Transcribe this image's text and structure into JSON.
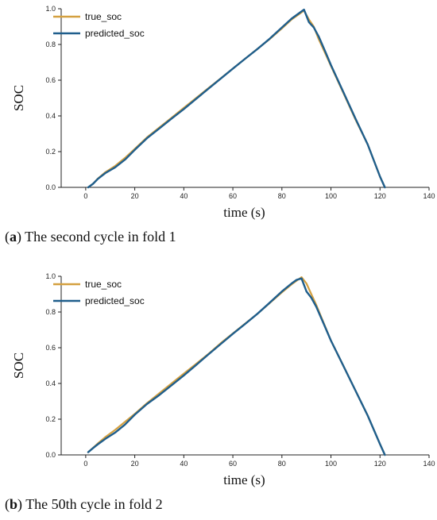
{
  "chart_data": [
    {
      "type": "line",
      "caption_tag": "a",
      "caption_text": "The second cycle in fold 1",
      "xlabel": "time (s)",
      "ylabel": "SOC",
      "xlim": [
        -10,
        140
      ],
      "ylim": [
        0,
        1
      ],
      "xticks": [
        0,
        20,
        40,
        60,
        80,
        100,
        120,
        140
      ],
      "yticks": [
        0.0,
        0.2,
        0.4,
        0.6,
        0.8,
        1.0
      ],
      "xtick_labels": [
        "0",
        "20",
        "40",
        "60",
        "80",
        "100",
        "120",
        "140"
      ],
      "ytick_labels": [
        "0.0",
        "0.2",
        "0.4",
        "0.6",
        "0.8",
        "1.0"
      ],
      "grid": false,
      "legend_position": "top-left",
      "series": [
        {
          "name": "true_soc",
          "color": "#D4A040",
          "x": [
            1,
            3,
            5,
            8,
            12,
            16,
            20,
            25,
            30,
            35,
            40,
            45,
            50,
            55,
            60,
            65,
            70,
            75,
            80,
            84,
            87,
            89,
            91,
            93,
            95,
            98,
            100,
            105,
            110,
            115,
            120,
            122
          ],
          "y": [
            0.0,
            0.02,
            0.05,
            0.085,
            0.12,
            0.165,
            0.215,
            0.28,
            0.335,
            0.39,
            0.445,
            0.5,
            0.555,
            0.61,
            0.665,
            0.72,
            0.775,
            0.83,
            0.89,
            0.94,
            0.97,
            0.99,
            0.94,
            0.9,
            0.83,
            0.74,
            0.68,
            0.53,
            0.38,
            0.24,
            0.06,
            0.0
          ]
        },
        {
          "name": "predicted_soc",
          "color": "#1F5E8C",
          "x": [
            1,
            3,
            5,
            8,
            12,
            16,
            20,
            25,
            30,
            35,
            40,
            45,
            50,
            55,
            60,
            65,
            70,
            75,
            80,
            84,
            87,
            89,
            91,
            93,
            95,
            98,
            100,
            105,
            110,
            115,
            120,
            122
          ],
          "y": [
            0.0,
            0.02,
            0.048,
            0.08,
            0.112,
            0.155,
            0.21,
            0.275,
            0.33,
            0.385,
            0.438,
            0.495,
            0.552,
            0.608,
            0.665,
            0.72,
            0.774,
            0.832,
            0.895,
            0.945,
            0.975,
            0.995,
            0.925,
            0.895,
            0.845,
            0.75,
            0.685,
            0.535,
            0.385,
            0.24,
            0.06,
            0.0
          ]
        }
      ]
    },
    {
      "type": "line",
      "caption_tag": "b",
      "caption_text": "The 50th cycle in fold 2",
      "xlabel": "time (s)",
      "ylabel": "SOC",
      "xlim": [
        -10,
        140
      ],
      "ylim": [
        0,
        1
      ],
      "xticks": [
        0,
        20,
        40,
        60,
        80,
        100,
        120,
        140
      ],
      "yticks": [
        0.0,
        0.2,
        0.4,
        0.6,
        0.8,
        1.0
      ],
      "xtick_labels": [
        "0",
        "20",
        "40",
        "60",
        "80",
        "100",
        "120",
        "140"
      ],
      "ytick_labels": [
        "0.0",
        "0.2",
        "0.4",
        "0.6",
        "0.8",
        "1.0"
      ],
      "grid": false,
      "legend_position": "top-left",
      "series": [
        {
          "name": "true_soc",
          "color": "#D4A040",
          "x": [
            1,
            3,
            5,
            8,
            12,
            16,
            20,
            25,
            30,
            35,
            40,
            45,
            50,
            55,
            60,
            65,
            70,
            75,
            80,
            84,
            86,
            88,
            90,
            92,
            94,
            97,
            100,
            105,
            110,
            115,
            120,
            122
          ],
          "y": [
            0.015,
            0.04,
            0.065,
            0.1,
            0.14,
            0.185,
            0.23,
            0.29,
            0.345,
            0.4,
            0.455,
            0.51,
            0.565,
            0.625,
            0.68,
            0.735,
            0.79,
            0.85,
            0.91,
            0.955,
            0.975,
            0.995,
            0.96,
            0.9,
            0.84,
            0.74,
            0.64,
            0.5,
            0.36,
            0.22,
            0.06,
            0.0
          ]
        },
        {
          "name": "predicted_soc",
          "color": "#1F5E8C",
          "x": [
            1,
            3,
            5,
            8,
            12,
            16,
            20,
            25,
            30,
            35,
            40,
            45,
            50,
            55,
            60,
            65,
            70,
            75,
            80,
            84,
            86,
            88,
            90,
            92,
            94,
            97,
            100,
            105,
            110,
            115,
            120,
            122
          ],
          "y": [
            0.015,
            0.038,
            0.06,
            0.09,
            0.125,
            0.17,
            0.225,
            0.285,
            0.335,
            0.39,
            0.445,
            0.503,
            0.562,
            0.62,
            0.678,
            0.733,
            0.79,
            0.852,
            0.915,
            0.96,
            0.98,
            0.988,
            0.915,
            0.88,
            0.83,
            0.735,
            0.64,
            0.5,
            0.36,
            0.22,
            0.06,
            0.0
          ]
        }
      ]
    }
  ]
}
